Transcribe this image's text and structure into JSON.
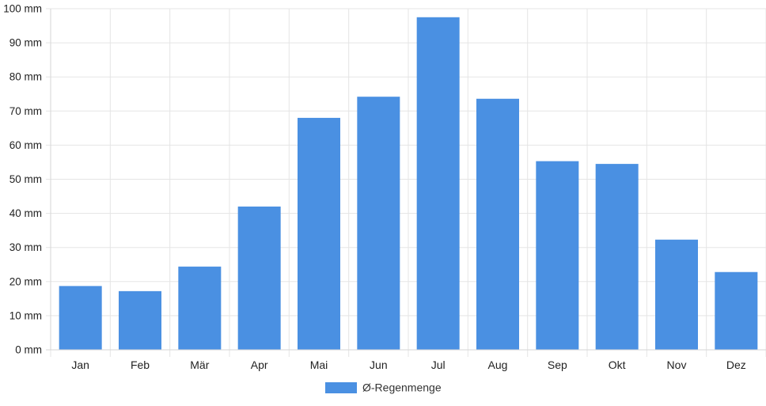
{
  "chart_data": {
    "type": "bar",
    "categories": [
      "Jan",
      "Feb",
      "Mär",
      "Apr",
      "Mai",
      "Jun",
      "Jul",
      "Aug",
      "Sep",
      "Okt",
      "Nov",
      "Dez"
    ],
    "series": [
      {
        "name": "Ø-Regenmenge",
        "color": "#4a90e2",
        "values": [
          18.7,
          17.2,
          24.4,
          42.0,
          68.0,
          74.2,
          97.5,
          73.6,
          55.3,
          54.5,
          32.3,
          22.8
        ]
      }
    ],
    "y_tick_labels": [
      "0 mm",
      "10 mm",
      "20 mm",
      "30 mm",
      "40 mm",
      "50 mm",
      "60 mm",
      "70 mm",
      "80 mm",
      "90 mm",
      "100 mm"
    ],
    "ylim": [
      0,
      100
    ],
    "grid": true,
    "legend_position": "bottom"
  }
}
